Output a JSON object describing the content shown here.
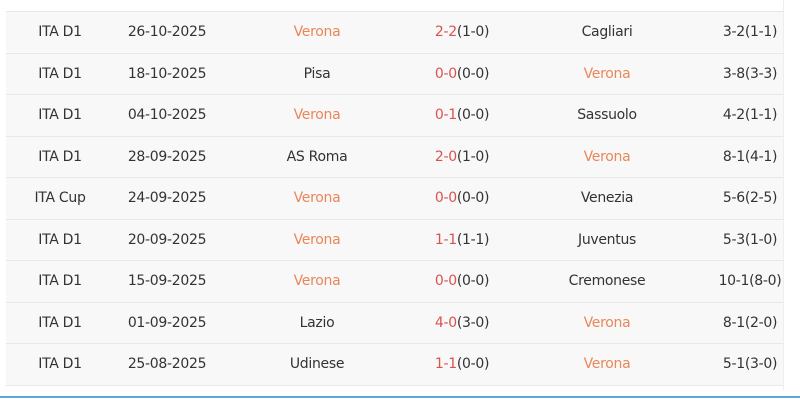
{
  "colors": {
    "highlight_team": "#e8875a",
    "fulltime_score": "#d9534f",
    "accent_line": "#5aa9d6"
  },
  "highlight_team": "Verona",
  "matches": [
    {
      "league": "ITA D1",
      "date": "26-10-2025",
      "home": "Verona",
      "ft": "2-2",
      "ht": "(1-0)",
      "away": "Cagliari",
      "corners": "3-2(1-1)"
    },
    {
      "league": "ITA D1",
      "date": "18-10-2025",
      "home": "Pisa",
      "ft": "0-0",
      "ht": "(0-0)",
      "away": "Verona",
      "corners": "3-8(3-3)"
    },
    {
      "league": "ITA D1",
      "date": "04-10-2025",
      "home": "Verona",
      "ft": "0-1",
      "ht": "(0-0)",
      "away": "Sassuolo",
      "corners": "4-2(1-1)"
    },
    {
      "league": "ITA D1",
      "date": "28-09-2025",
      "home": "AS Roma",
      "ft": "2-0",
      "ht": "(1-0)",
      "away": "Verona",
      "corners": "8-1(4-1)"
    },
    {
      "league": "ITA Cup",
      "date": "24-09-2025",
      "home": "Verona",
      "ft": "0-0",
      "ht": "(0-0)",
      "away": "Venezia",
      "corners": "5-6(2-5)"
    },
    {
      "league": "ITA D1",
      "date": "20-09-2025",
      "home": "Verona",
      "ft": "1-1",
      "ht": "(1-1)",
      "away": "Juventus",
      "corners": "5-3(1-0)"
    },
    {
      "league": "ITA D1",
      "date": "15-09-2025",
      "home": "Verona",
      "ft": "0-0",
      "ht": "(0-0)",
      "away": "Cremonese",
      "corners": "10-1(8-0)"
    },
    {
      "league": "ITA D1",
      "date": "01-09-2025",
      "home": "Lazio",
      "ft": "4-0",
      "ht": "(3-0)",
      "away": "Verona",
      "corners": "8-1(2-0)"
    },
    {
      "league": "ITA D1",
      "date": "25-08-2025",
      "home": "Udinese",
      "ft": "1-1",
      "ht": "(0-0)",
      "away": "Verona",
      "corners": "5-1(3-0)"
    }
  ]
}
